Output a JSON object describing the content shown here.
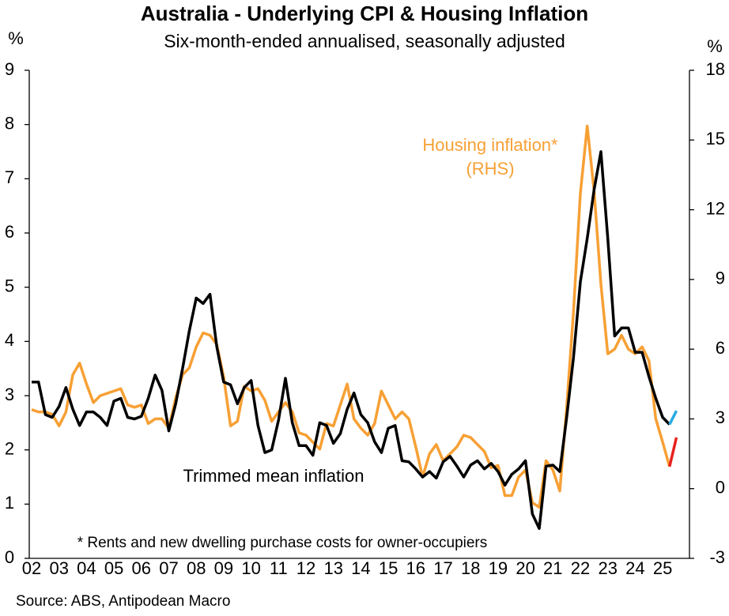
{
  "chart_data": {
    "type": "line",
    "title": "Australia - Underlying CPI & Housing Inflation",
    "subtitle": "Six-month-ended annualised, seasonally adjusted",
    "y_label": "%",
    "y2_label": "%",
    "annotations": [
      "(RHS)",
      "* Rents and new dwelling purchase costs for owner-occupiers"
    ],
    "source": "Source: ABS, Antipodean Macro",
    "categories": [
      "02",
      null,
      null,
      null,
      "03",
      null,
      null,
      null,
      "04",
      null,
      null,
      null,
      "05",
      null,
      null,
      null,
      "06",
      null,
      null,
      null,
      "07",
      null,
      null,
      null,
      "08",
      null,
      null,
      null,
      "09",
      null,
      null,
      null,
      "10",
      null,
      null,
      null,
      "11",
      null,
      null,
      null,
      "12",
      null,
      null,
      null,
      "13",
      null,
      null,
      null,
      "14",
      null,
      null,
      null,
      "15",
      null,
      null,
      null,
      "16",
      null,
      null,
      null,
      "17",
      null,
      null,
      null,
      "18",
      null,
      null,
      null,
      "19",
      null,
      null,
      null,
      "20",
      null,
      null,
      null,
      "21",
      null,
      null,
      null,
      "22",
      null,
      null,
      null,
      "23",
      null,
      null,
      null,
      "24",
      null,
      null,
      null,
      "25",
      null,
      null
    ],
    "ylim": [
      0,
      9
    ],
    "yticks": [
      0,
      1,
      2,
      3,
      4,
      5,
      6,
      7,
      8,
      9
    ],
    "y2lim": [
      -3,
      18
    ],
    "y2ticks": [
      -3,
      0,
      3,
      6,
      9,
      12,
      15,
      18
    ],
    "series": [
      {
        "name": "Trimmed mean inflation",
        "color": "#000000",
        "values": [
          3.25,
          3.25,
          2.65,
          2.6,
          2.8,
          3.15,
          2.75,
          2.45,
          2.7,
          2.7,
          2.6,
          2.45,
          2.9,
          2.95,
          2.6,
          2.57,
          2.62,
          2.95,
          3.38,
          3.1,
          2.35,
          2.85,
          3.5,
          4.2,
          4.8,
          4.7,
          4.87,
          3.9,
          3.25,
          3.2,
          2.85,
          3.15,
          3.28,
          2.45,
          1.95,
          2.0,
          2.55,
          3.32,
          2.5,
          2.08,
          2.08,
          1.9,
          2.5,
          2.45,
          2.12,
          2.3,
          2.75,
          3.05,
          2.65,
          2.5,
          2.15,
          1.95,
          2.4,
          2.45,
          1.8,
          1.78,
          1.65,
          1.5,
          1.6,
          1.48,
          1.78,
          1.88,
          1.7,
          1.5,
          1.72,
          1.8,
          1.65,
          1.75,
          1.6,
          1.35,
          1.55,
          1.65,
          1.8,
          0.82,
          0.55,
          1.7,
          1.72,
          1.6,
          2.6,
          3.7,
          5.1,
          5.9,
          6.8,
          7.5,
          5.9,
          4.1,
          4.25,
          4.25,
          3.8,
          3.8,
          3.35,
          2.95,
          2.6,
          2.47,
          null
        ]
      },
      {
        "color": "#29abe2",
        "values": [
          null,
          null,
          null,
          null,
          null,
          null,
          null,
          null,
          null,
          null,
          null,
          null,
          null,
          null,
          null,
          null,
          null,
          null,
          null,
          null,
          null,
          null,
          null,
          null,
          null,
          null,
          null,
          null,
          null,
          null,
          null,
          null,
          null,
          null,
          null,
          null,
          null,
          null,
          null,
          null,
          null,
          null,
          null,
          null,
          null,
          null,
          null,
          null,
          null,
          null,
          null,
          null,
          null,
          null,
          null,
          null,
          null,
          null,
          null,
          null,
          null,
          null,
          null,
          null,
          null,
          null,
          null,
          null,
          null,
          null,
          null,
          null,
          null,
          null,
          null,
          null,
          null,
          null,
          null,
          null,
          null,
          null,
          null,
          null,
          null,
          null,
          null,
          null,
          null,
          null,
          null,
          null,
          null,
          2.47,
          2.72
        ]
      },
      {
        "name": "Housing inflation*",
        "color": "#f7a035",
        "axis": "y2",
        "values": [
          3.4,
          3.3,
          3.3,
          3.2,
          2.7,
          3.3,
          4.9,
          5.4,
          4.5,
          3.7,
          4.0,
          4.1,
          4.2,
          4.3,
          3.6,
          3.5,
          3.6,
          2.8,
          3.0,
          3.0,
          2.6,
          3.9,
          4.9,
          5.2,
          6.1,
          6.7,
          6.6,
          6.2,
          4.8,
          2.7,
          2.9,
          4.4,
          4.2,
          4.3,
          3.8,
          2.9,
          3.3,
          3.7,
          3.3,
          2.4,
          2.3,
          2.0,
          1.7,
          2.8,
          2.7,
          3.6,
          4.5,
          3.0,
          2.6,
          2.3,
          2.8,
          4.2,
          3.6,
          3.0,
          3.3,
          3.0,
          1.8,
          0.5,
          1.5,
          1.9,
          1.2,
          1.5,
          1.8,
          2.3,
          2.2,
          1.9,
          1.6,
          0.9,
          1.0,
          -0.3,
          -0.3,
          0.5,
          0.8,
          -0.6,
          -0.8,
          1.2,
          0.8,
          -0.1,
          3.5,
          7.6,
          12.7,
          15.6,
          12.8,
          8.8,
          5.8,
          6.0,
          6.6,
          6.0,
          5.8,
          6.1,
          5.5,
          3.0,
          2.0,
          0.95,
          null
        ]
      },
      {
        "color": "#e8211d",
        "axis": "y2",
        "values": [
          null,
          null,
          null,
          null,
          null,
          null,
          null,
          null,
          null,
          null,
          null,
          null,
          null,
          null,
          null,
          null,
          null,
          null,
          null,
          null,
          null,
          null,
          null,
          null,
          null,
          null,
          null,
          null,
          null,
          null,
          null,
          null,
          null,
          null,
          null,
          null,
          null,
          null,
          null,
          null,
          null,
          null,
          null,
          null,
          null,
          null,
          null,
          null,
          null,
          null,
          null,
          null,
          null,
          null,
          null,
          null,
          null,
          null,
          null,
          null,
          null,
          null,
          null,
          null,
          null,
          null,
          null,
          null,
          null,
          null,
          null,
          null,
          null,
          null,
          null,
          null,
          null,
          null,
          null,
          null,
          null,
          null,
          null,
          null,
          null,
          null,
          null,
          null,
          null,
          null,
          null,
          null,
          null,
          0.95,
          2.2
        ]
      }
    ]
  }
}
